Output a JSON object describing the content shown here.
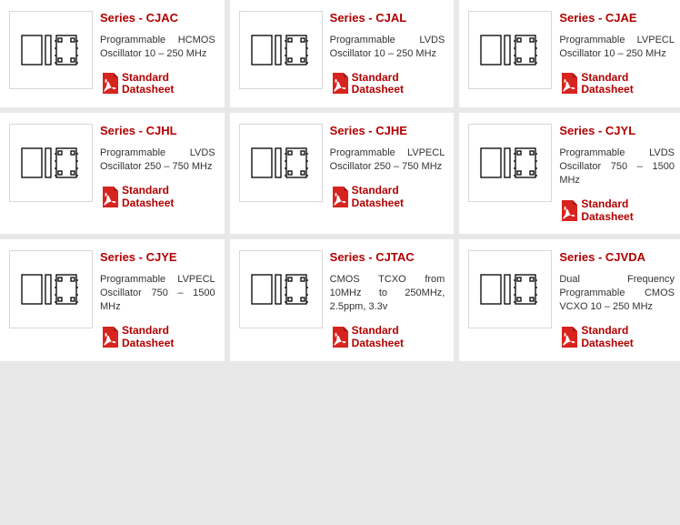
{
  "colors": {
    "card_bg": "#ffffff",
    "page_bg": "#e8e8e8",
    "accent": "#b30000",
    "text": "#333333",
    "thumb_border": "#d8d8d8",
    "pdf_red": "#d8241f",
    "pdf_white": "#ffffff",
    "chip_stroke": "#000000"
  },
  "typography": {
    "title_fontsize": 13,
    "desc_fontsize": 11,
    "ds_fontsize": 12,
    "font_family": "Verdana, Arial, sans-serif"
  },
  "datasheet_label_lines": [
    "Standard",
    "Datasheet"
  ],
  "cards": [
    {
      "title": "Series - CJAC",
      "desc": "Programmable HCMOS Oscillator 10 – 250 MHz"
    },
    {
      "title": "Series - CJAL",
      "desc": "Programmable LVDS Oscillator 10 – 250 MHz"
    },
    {
      "title": "Series - CJAE",
      "desc": "Programmable LVPECL Oscillator 10 – 250 MHz"
    },
    {
      "title": "Series - CJHL",
      "desc": "Programmable LVDS Oscillator 250 – 750 MHz"
    },
    {
      "title": "Series - CJHE",
      "desc": "Programmable LVPECL Oscillator 250 – 750 MHz"
    },
    {
      "title": "Series - CJYL",
      "desc": "Programmable LVDS Oscillator 750 – 1500 MHz"
    },
    {
      "title": "Series - CJYE",
      "desc": "Programmable LVPECL Oscillator 750 – 1500 MHz"
    },
    {
      "title": "Series - CJTAC",
      "desc": "CMOS TCXO from 10MHz to 250MHz, 2.5ppm, 3.3v"
    },
    {
      "title": "Series - CJVDA",
      "desc": "Dual Frequency Programmable CMOS VCXO 10 – 250 MHz"
    }
  ]
}
